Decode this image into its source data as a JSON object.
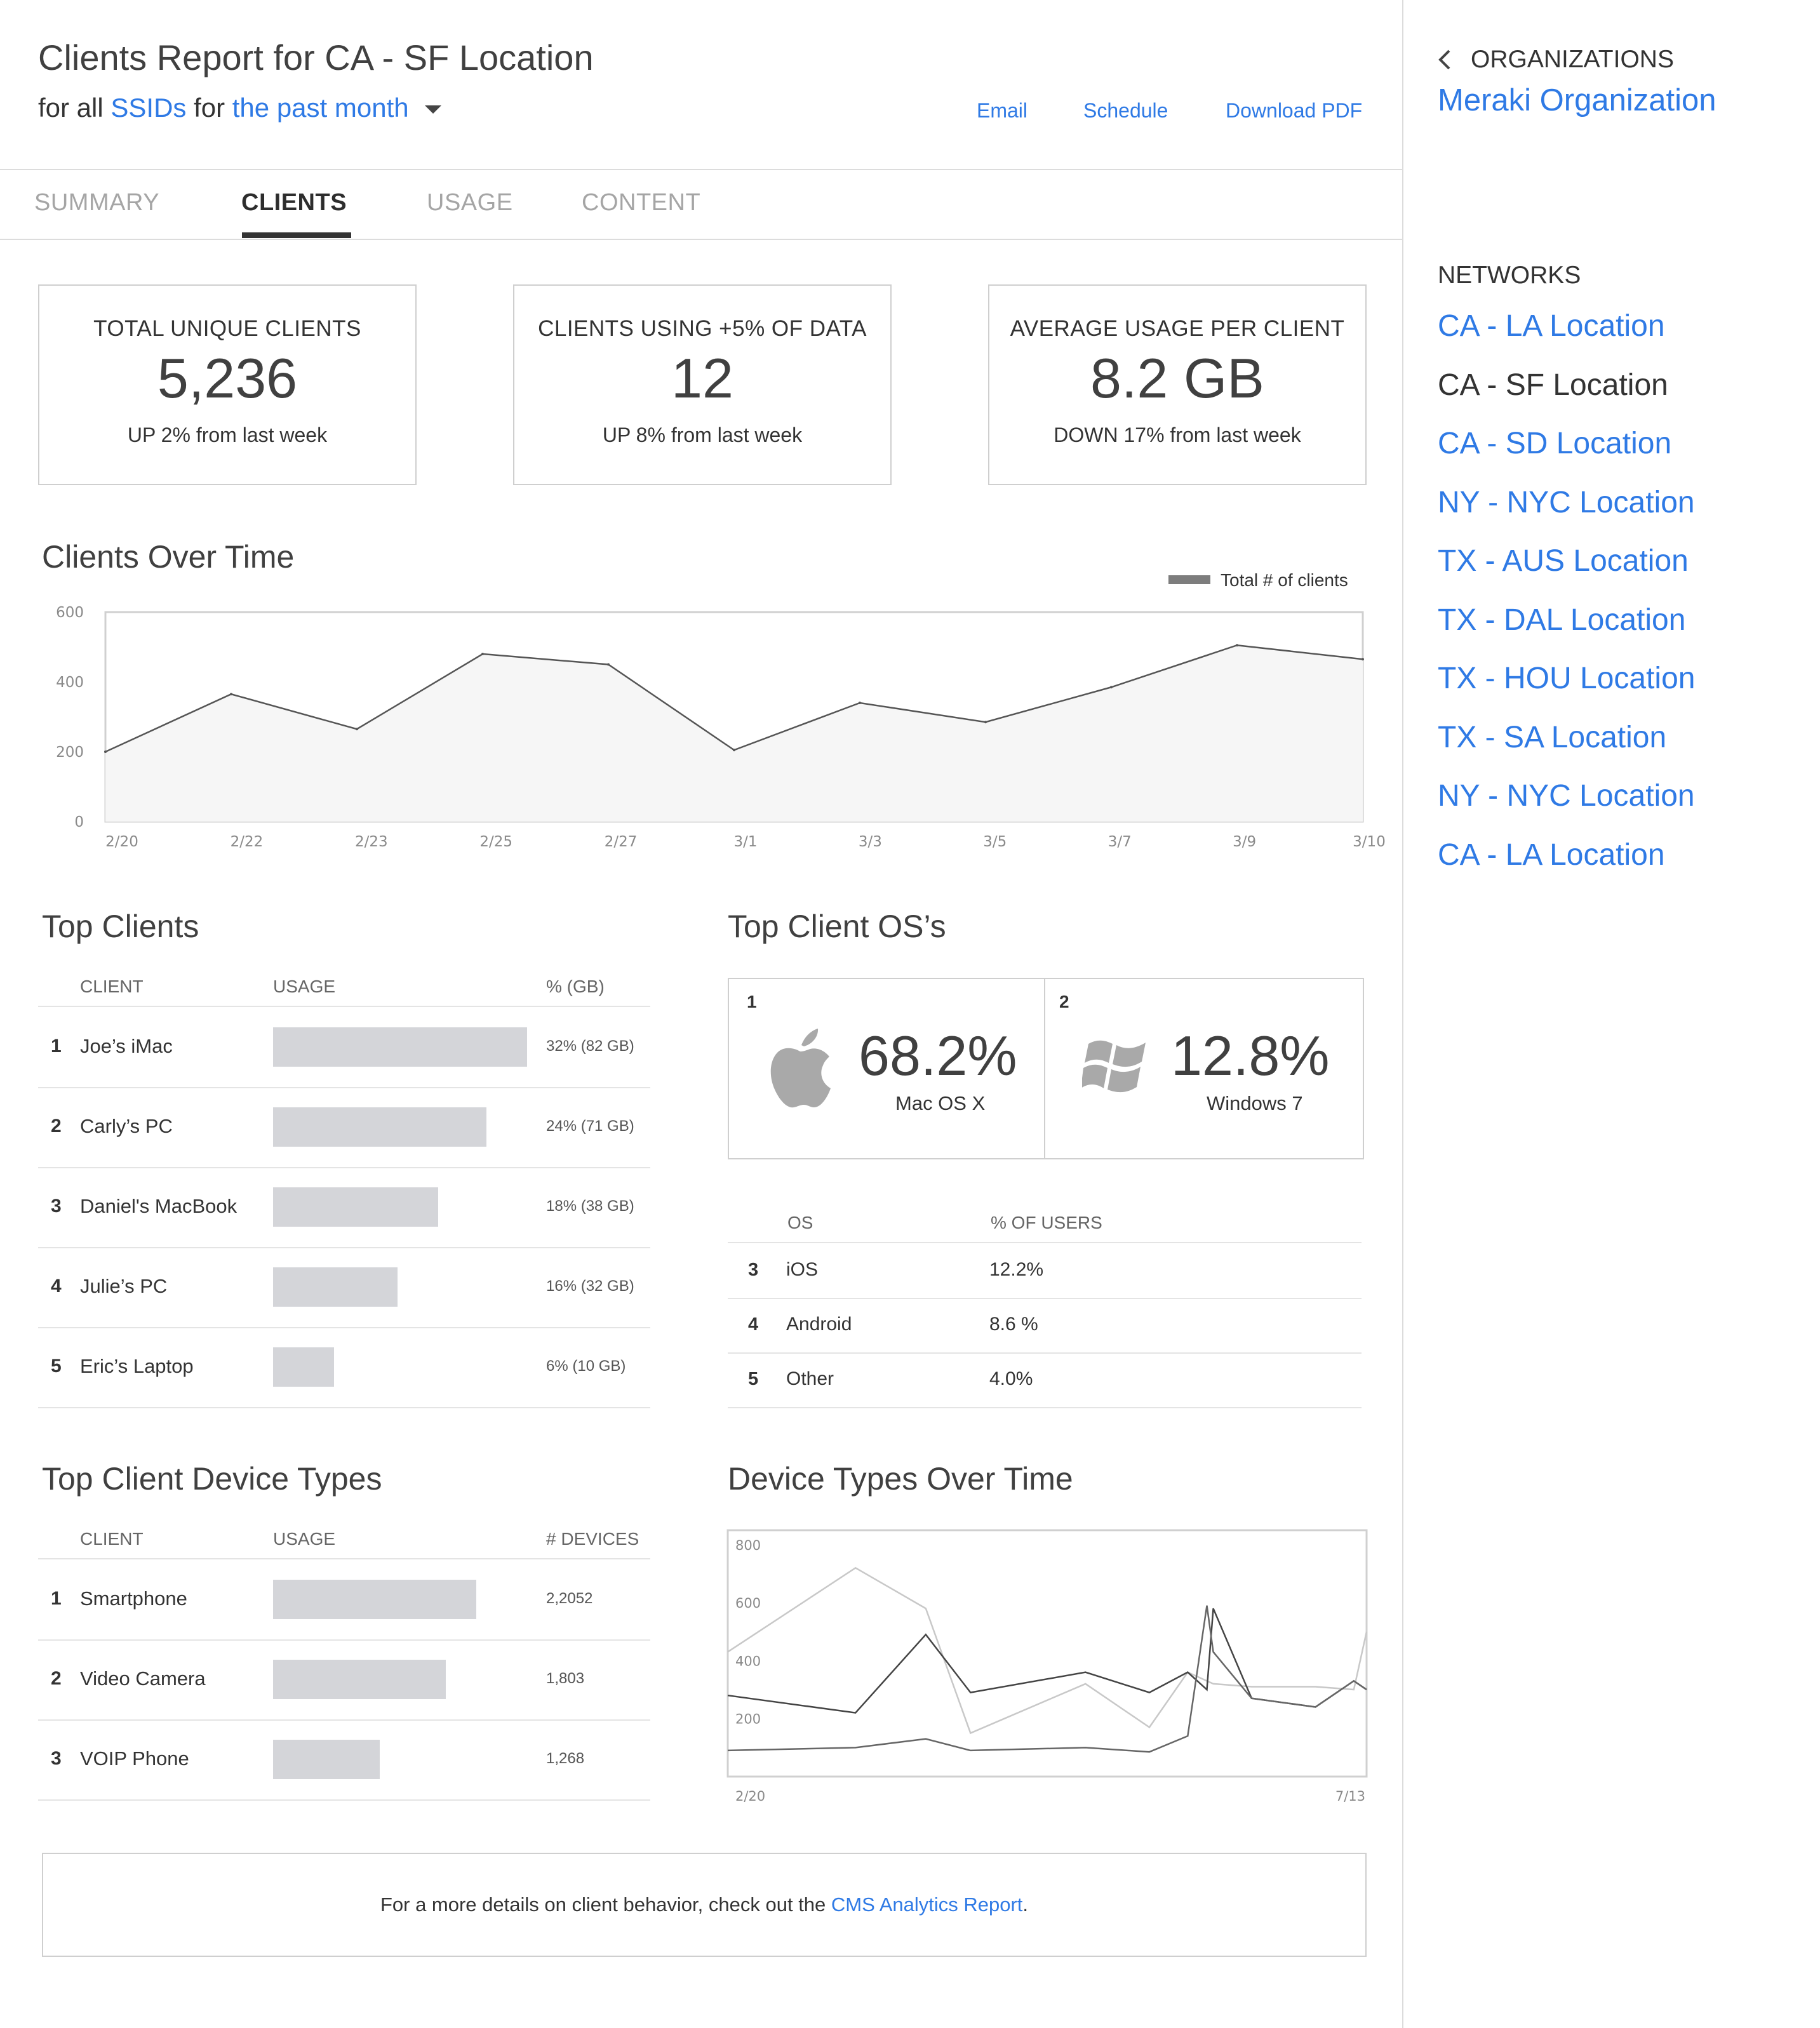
{
  "header": {
    "title": "Clients Report for CA - SF Location",
    "subtitle_prefix": "for all",
    "subtitle_ssids": "SSIDs",
    "subtitle_for": "for",
    "subtitle_period": "the past month",
    "actions": {
      "email": "Email",
      "schedule": "Schedule",
      "download": "Download PDF"
    }
  },
  "tabs": [
    {
      "label": "SUMMARY",
      "active": false
    },
    {
      "label": "CLIENTS",
      "active": true
    },
    {
      "label": "USAGE",
      "active": false
    },
    {
      "label": "CONTENT",
      "active": false
    }
  ],
  "stats": [
    {
      "label": "TOTAL UNIQUE CLIENTS",
      "value": "5,236",
      "delta": "UP 2% from last week"
    },
    {
      "label": "CLIENTS USING +5% OF DATA",
      "value": "12",
      "delta": "UP 8% from last week"
    },
    {
      "label": "AVERAGE USAGE PER CLIENT",
      "value": "8.2 GB",
      "delta": "DOWN 17% from last week"
    }
  ],
  "clients_over_time": {
    "title": "Clients Over Time",
    "legend": "Total # of clients",
    "y_ticks": [
      "600",
      "400",
      "200",
      "0"
    ]
  },
  "top_clients": {
    "title": "Top Clients",
    "columns": [
      "CLIENT",
      "USAGE",
      "% (GB)"
    ],
    "rows": [
      {
        "rank": "1",
        "name": "Joe’s iMac",
        "share": 1.0,
        "value": "32% (82 GB)"
      },
      {
        "rank": "2",
        "name": "Carly’s PC",
        "share": 0.84,
        "value": "24% (71 GB)"
      },
      {
        "rank": "3",
        "name": "Daniel's MacBook",
        "share": 0.65,
        "value": "18% (38 GB)"
      },
      {
        "rank": "4",
        "name": "Julie’s PC",
        "share": 0.49,
        "value": "16% (32 GB)"
      },
      {
        "rank": "5",
        "name": "Eric’s Laptop",
        "share": 0.24,
        "value": "6% (10 GB)"
      }
    ]
  },
  "top_os": {
    "title": "Top Client OS’s",
    "featured": [
      {
        "rank": "1",
        "pct": "68.2%",
        "name": "Mac OS X",
        "icon": "apple-icon"
      },
      {
        "rank": "2",
        "pct": "12.8%",
        "name": "Windows 7",
        "icon": "windows-icon"
      }
    ],
    "columns": [
      "OS",
      "% OF USERS"
    ],
    "rows": [
      {
        "rank": "3",
        "name": "iOS",
        "pct": "12.2%"
      },
      {
        "rank": "4",
        "name": "Android",
        "pct": "8.6 %"
      },
      {
        "rank": "5",
        "name": "Other",
        "pct": "4.0%"
      }
    ]
  },
  "top_device_types": {
    "title": "Top Client Device Types",
    "columns": [
      "CLIENT",
      "USAGE",
      "# DEVICES"
    ],
    "rows": [
      {
        "rank": "1",
        "name": "Smartphone",
        "share": 0.8,
        "value": "2,2052"
      },
      {
        "rank": "2",
        "name": "Video Camera",
        "share": 0.68,
        "value": "1,803"
      },
      {
        "rank": "3",
        "name": "VOIP Phone",
        "share": 0.42,
        "value": "1,268"
      }
    ]
  },
  "device_types_over_time": {
    "title": "Device Types Over Time",
    "y_ticks": [
      "800",
      "600",
      "400",
      "200"
    ],
    "x_start": "2/20",
    "x_end": "7/13"
  },
  "footer": {
    "text": "For a more details on client behavior, check out the",
    "link": "CMS Analytics Report",
    "suffix": "."
  },
  "sidebar": {
    "back_label": "ORGANIZATIONS",
    "org_name": "Meraki Organization",
    "networks_label": "NETWORKS",
    "networks": [
      {
        "name": "CA - LA Location",
        "active": false
      },
      {
        "name": "CA - SF Location",
        "active": true
      },
      {
        "name": "CA - SD Location",
        "active": false
      },
      {
        "name": "NY - NYC Location",
        "active": false
      },
      {
        "name": "TX - AUS Location",
        "active": false
      },
      {
        "name": "TX - DAL Location",
        "active": false
      },
      {
        "name": "TX - HOU Location",
        "active": false
      },
      {
        "name": "TX - SA Location",
        "active": false
      },
      {
        "name": "NY - NYC Location",
        "active": false
      },
      {
        "name": "CA - LA Location",
        "active": false
      }
    ]
  },
  "colors": {
    "link": "#2f7ae5",
    "bar": "#d4d5d9",
    "text": "#333333"
  },
  "chart_data": [
    {
      "type": "area",
      "title": "Clients Over Time",
      "x": [
        "2/20",
        "2/22",
        "2/23",
        "2/25",
        "2/27",
        "3/1",
        "3/3",
        "3/5",
        "3/7",
        "3/9",
        "3/10"
      ],
      "series": [
        {
          "name": "Total # of clients",
          "values": [
            200,
            365,
            265,
            480,
            450,
            205,
            340,
            285,
            385,
            505,
            465
          ]
        }
      ],
      "ylim": [
        0,
        600
      ],
      "grid": false,
      "legend": "top-right"
    },
    {
      "type": "line",
      "title": "Device Types Over Time",
      "x_range": [
        "2/20",
        "7/13"
      ],
      "x_positions": [
        0,
        0.2,
        0.31,
        0.38,
        0.56,
        0.66,
        0.72,
        0.75,
        0.76,
        0.82,
        0.92,
        0.98,
        1.0
      ],
      "series": [
        {
          "values": [
            430,
            720,
            580,
            150,
            320,
            170,
            360,
            330,
            320,
            310,
            310,
            300,
            500
          ]
        },
        {
          "values": [
            280,
            220,
            490,
            290,
            360,
            290,
            360,
            300,
            580,
            270,
            240,
            330,
            300
          ]
        },
        {
          "values": [
            90,
            100,
            130,
            90,
            100,
            85,
            140,
            590,
            430,
            270,
            240,
            330,
            300
          ]
        }
      ],
      "ylim": [
        0,
        850
      ],
      "grid": false
    }
  ]
}
